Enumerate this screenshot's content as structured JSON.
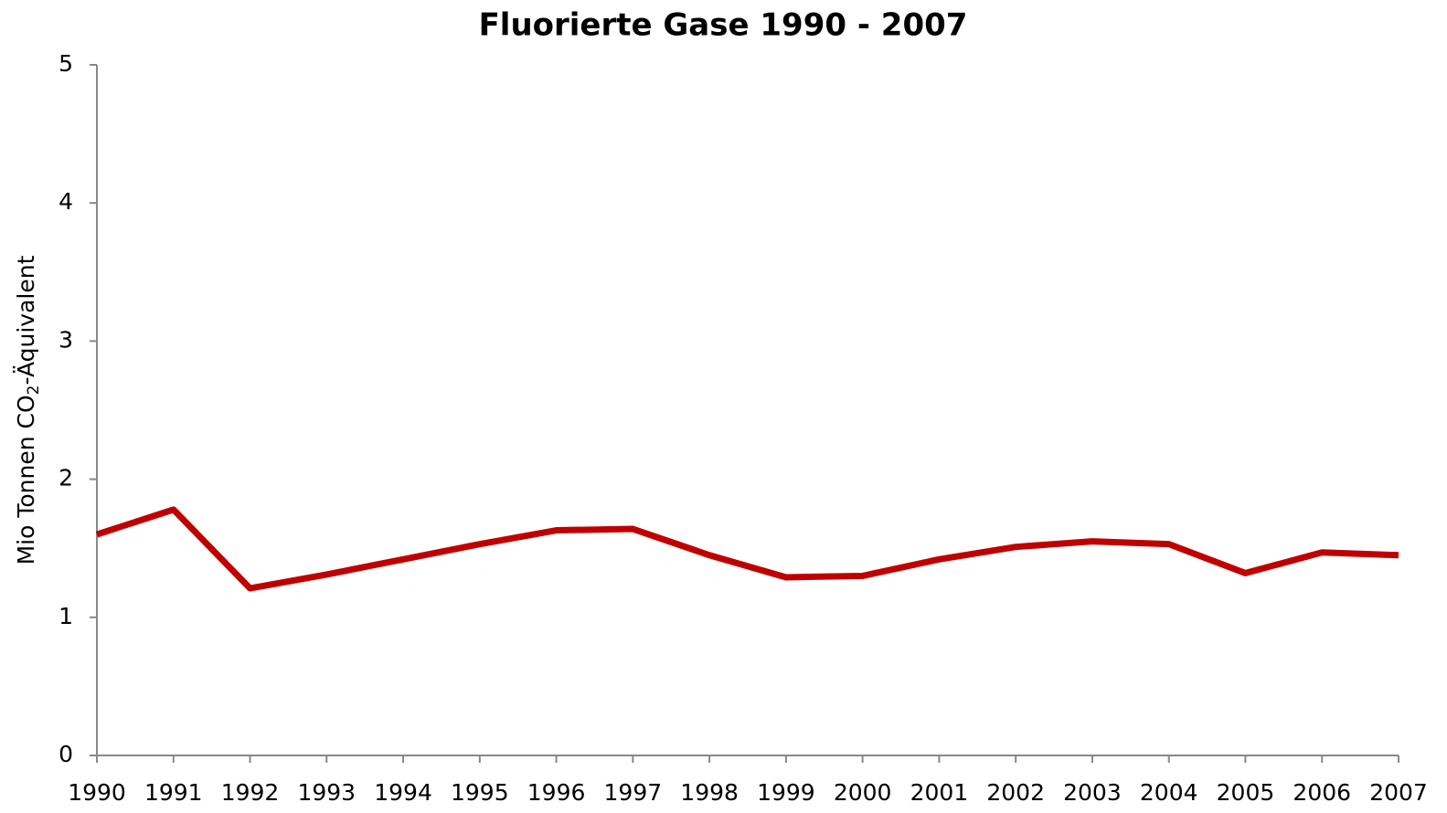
{
  "chart_data": {
    "type": "line",
    "title": "Fluorierte Gase 1990 - 2007",
    "y_label": {
      "main": "Mio Tonnen  CO",
      "sub": "2",
      "rest": "-Äquivalent"
    },
    "x": [
      1990,
      1991,
      1992,
      1993,
      1994,
      1995,
      1996,
      1997,
      1998,
      1999,
      2000,
      2001,
      2002,
      2003,
      2004,
      2005,
      2006,
      2007
    ],
    "series": [
      {
        "name": "Fluorierte Gase",
        "color": "#c00000",
        "values": [
          1.6,
          1.78,
          1.21,
          1.31,
          1.42,
          1.53,
          1.63,
          1.64,
          1.45,
          1.29,
          1.3,
          1.42,
          1.51,
          1.55,
          1.53,
          1.32,
          1.47,
          1.45
        ]
      }
    ],
    "xlim": [
      1990,
      2007
    ],
    "xticks": [
      1990,
      1991,
      1992,
      1993,
      1994,
      1995,
      1996,
      1997,
      1998,
      1999,
      2000,
      2001,
      2002,
      2003,
      2004,
      2005,
      2006,
      2007
    ],
    "ylim": [
      0,
      5
    ],
    "yticks": [
      0,
      1,
      2,
      3,
      4,
      5
    ],
    "grid": false
  }
}
